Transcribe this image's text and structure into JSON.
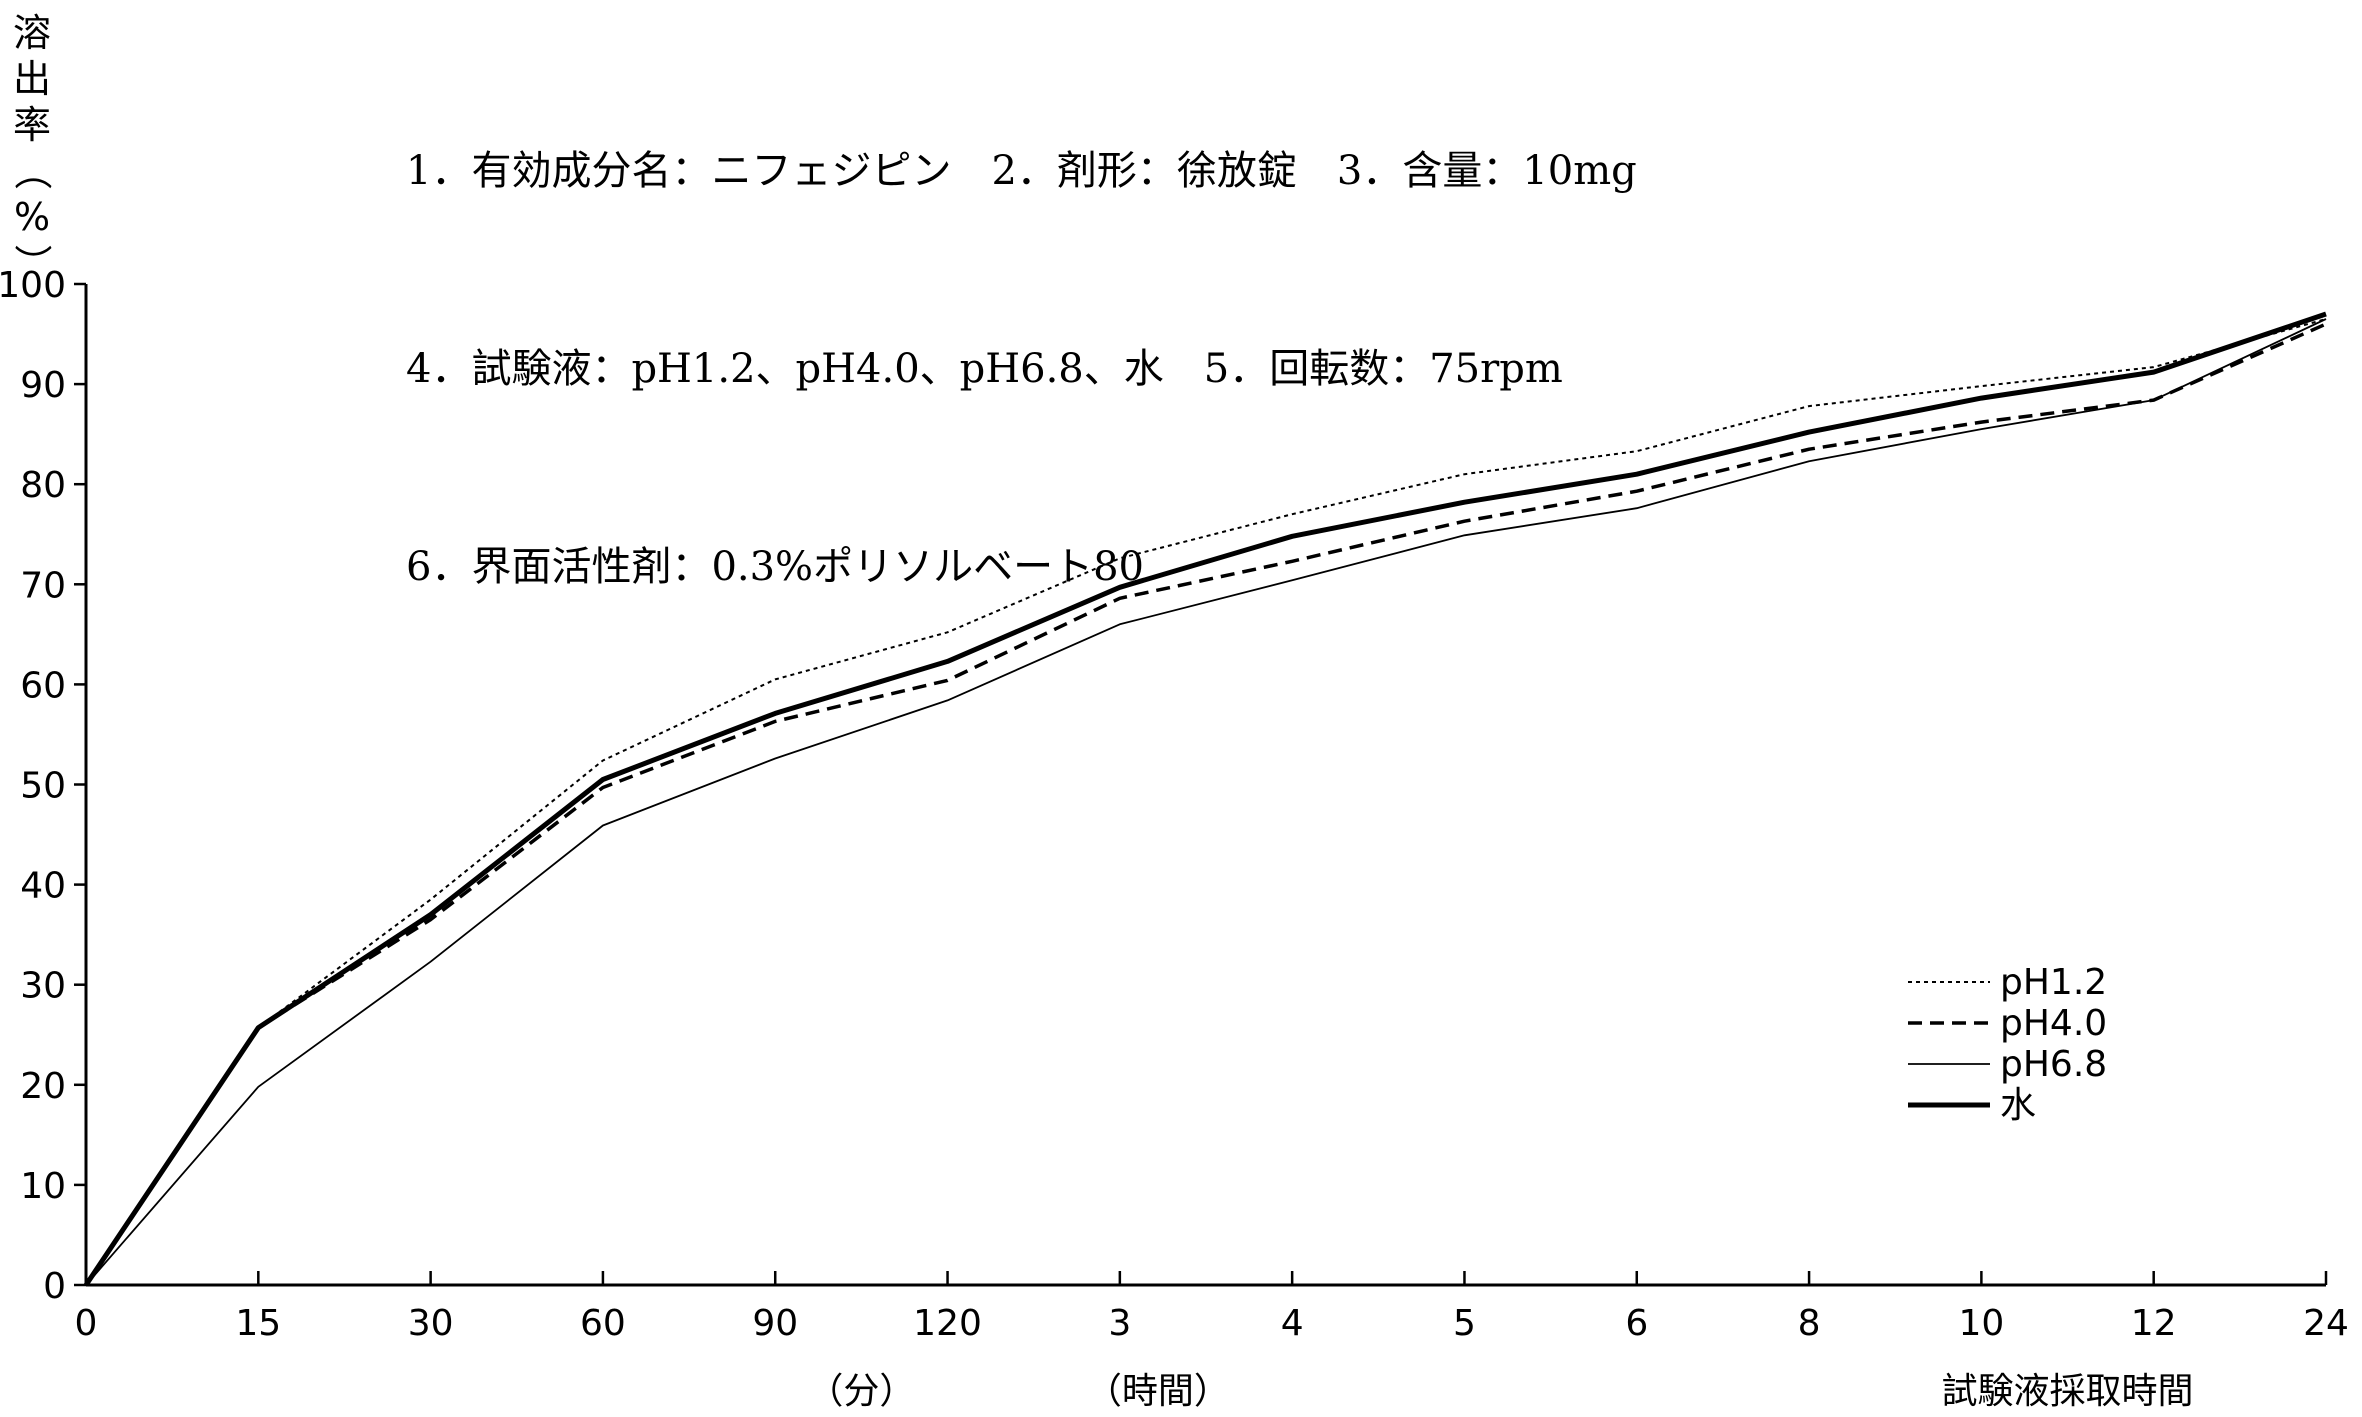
{
  "header": {
    "conditions": [
      "1．有効成分名：ニフェジピン　2．剤形：徐放錠　3．含量：10mg",
      "4．試験液：pH1.2、pH4.0、pH6.8、水　5．回転数：75rpm",
      "6．界面活性剤：0.3%ポリソルベート80"
    ]
  },
  "chart_data": {
    "type": "line",
    "title": "",
    "ylabel": "溶出率（%）",
    "xlabel": "試験液採取時間",
    "x_unit_labels": [
      "（分）",
      "（時間）"
    ],
    "categories": [
      "0",
      "15",
      "30",
      "60",
      "90",
      "120",
      "3",
      "4",
      "5",
      "6",
      "8",
      "10",
      "12",
      "24"
    ],
    "yticks": [
      "0",
      "10",
      "20",
      "30",
      "40",
      "50",
      "60",
      "70",
      "80",
      "90",
      "100"
    ],
    "ylim": [
      0,
      100
    ],
    "grid": false,
    "legend_position": "bottom-right",
    "series": [
      {
        "name": "pH1.2",
        "style": "dotted",
        "color": "#000000",
        "values": [
          0,
          25.7,
          38.5,
          52.4,
          60.5,
          65.2,
          72.6,
          77.0,
          81.0,
          83.3,
          87.8,
          89.8,
          91.7,
          96.5
        ]
      },
      {
        "name": "pH4.0",
        "style": "dashed",
        "color": "#000000",
        "values": [
          0,
          25.7,
          36.5,
          49.7,
          56.3,
          60.4,
          68.6,
          72.3,
          76.3,
          79.3,
          83.5,
          86.2,
          88.4,
          96.0
        ]
      },
      {
        "name": "pH6.8",
        "style": "thin",
        "color": "#000000",
        "values": [
          0,
          19.8,
          32.3,
          45.9,
          52.6,
          58.4,
          66.0,
          70.4,
          74.9,
          77.6,
          82.3,
          85.5,
          88.4,
          96.5
        ]
      },
      {
        "name": "水",
        "style": "thick",
        "color": "#000000",
        "values": [
          0,
          25.7,
          37.0,
          50.5,
          57.1,
          62.3,
          69.7,
          74.8,
          78.2,
          81.0,
          85.2,
          88.6,
          91.2,
          97.0
        ]
      }
    ]
  }
}
